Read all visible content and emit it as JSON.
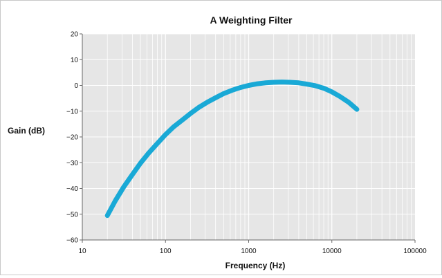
{
  "chart_data": {
    "type": "line",
    "title": "A Weighting Filter",
    "xlabel": "Frequency (Hz)",
    "ylabel": "Gain (dB)",
    "xscale": "log",
    "xlim": [
      10,
      100000
    ],
    "ylim": [
      -60,
      20
    ],
    "grid": true,
    "legend": "none",
    "x_ticks": [
      "10",
      "100",
      "1000",
      "10000",
      "100000"
    ],
    "y_ticks": [
      "20",
      "10",
      "0",
      "−10",
      "−20",
      "−30",
      "−40",
      "−50",
      "−60"
    ],
    "series": [
      {
        "color": "#19a9d6",
        "x": [
          20,
          25,
          31.5,
          40,
          50,
          63,
          80,
          100,
          125,
          160,
          200,
          250,
          315,
          400,
          500,
          630,
          800,
          1000,
          1250,
          1600,
          2000,
          2500,
          3150,
          4000,
          5000,
          6300,
          8000,
          10000,
          12500,
          16000,
          20000
        ],
        "y": [
          -50.5,
          -44.7,
          -39.4,
          -34.6,
          -30.2,
          -26.2,
          -22.5,
          -19.1,
          -16.1,
          -13.4,
          -10.9,
          -8.6,
          -6.6,
          -4.8,
          -3.2,
          -1.9,
          -0.8,
          0.0,
          0.6,
          1.0,
          1.2,
          1.3,
          1.2,
          1.0,
          0.5,
          -0.1,
          -1.1,
          -2.5,
          -4.3,
          -6.6,
          -9.3
        ]
      }
    ]
  },
  "colors": {
    "plot_background": "#e6e6e6",
    "grid": "#ffffff",
    "axis": "#666666"
  }
}
